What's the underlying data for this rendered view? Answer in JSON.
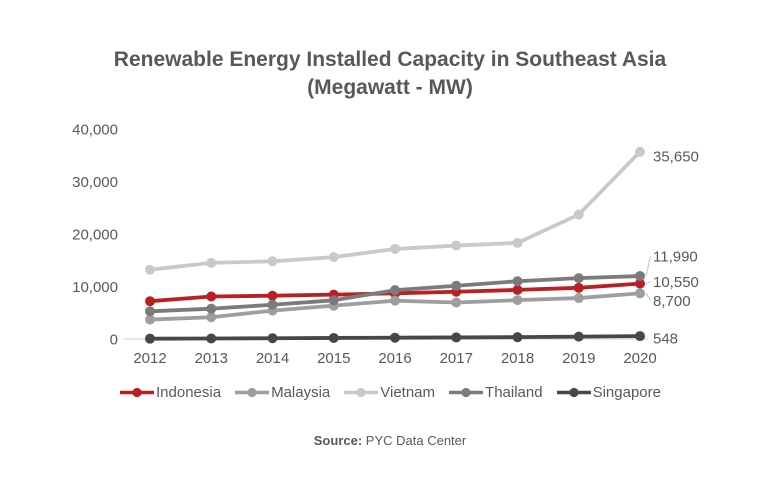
{
  "title": {
    "line1": "Renewable Energy Installed Capacity in Southeast Asia",
    "line2": "(Megawatt - MW)"
  },
  "source": {
    "label": "Source:",
    "text": " PYC Data Center"
  },
  "colors": {
    "text": "#595959",
    "title_text": "#58585a",
    "axis_line": "#d7d7d7",
    "leader_line": "#c9c9c9",
    "background": "#ffffff",
    "indonesia_red": "#b92025"
  },
  "chart_data": {
    "type": "line",
    "title": "Renewable Energy Installed Capacity in Southeast Asia (Megawatt - MW)",
    "x": [
      2012,
      2013,
      2014,
      2015,
      2016,
      2017,
      2018,
      2019,
      2020
    ],
    "xlabel": "",
    "ylabel": "",
    "ylim": [
      0,
      40000
    ],
    "y_ticks": [
      0,
      10000,
      20000,
      30000,
      40000
    ],
    "y_tick_labels": [
      "0",
      "10,000",
      "20,000",
      "30,000",
      "40,000"
    ],
    "grid": false,
    "legend_position": "bottom",
    "series": [
      {
        "name": "Indonesia",
        "color": "#b92025",
        "values": [
          7200,
          8100,
          8250,
          8450,
          8700,
          9000,
          9350,
          9750,
          10550
        ],
        "end_label": "10,550",
        "end_label_color": "#b92025",
        "end_label_dy": -2,
        "leader": true
      },
      {
        "name": "Malaysia",
        "color": "#9e9e9e",
        "values": [
          3700,
          4150,
          5400,
          6350,
          7300,
          6950,
          7400,
          7800,
          8700
        ],
        "end_label": "8,700",
        "end_label_color": "#595959",
        "end_label_dy": 7,
        "leader": true
      },
      {
        "name": "Vietnam",
        "color": "#c9c9c9",
        "values": [
          13200,
          14500,
          14800,
          15600,
          17150,
          17800,
          18300,
          23700,
          35650
        ],
        "end_label": "35,650",
        "end_label_color": "#595959",
        "end_label_dy": 4,
        "leader": false
      },
      {
        "name": "Thailand",
        "color": "#7b7b7b",
        "values": [
          5270,
          5770,
          6530,
          7370,
          9300,
          10150,
          11000,
          11600,
          11990
        ],
        "end_label": "11,990",
        "end_label_color": "#595959",
        "end_label_dy": -20,
        "leader": true
      },
      {
        "name": "Singapore",
        "color": "#474747",
        "values": [
          60,
          100,
          150,
          200,
          250,
          300,
          350,
          450,
          548
        ],
        "end_label": "548",
        "end_label_color": "#595959",
        "end_label_dy": 2,
        "leader": false
      }
    ]
  }
}
